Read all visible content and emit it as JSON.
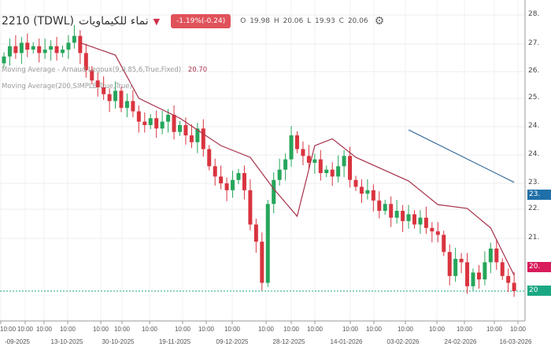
{
  "header": {
    "symbol": "2210 (TDWL)",
    "name": "نماء للكيماويات",
    "change_badge": "-1.19%(-0.24)",
    "open_label": "O",
    "open": "19.98",
    "high_label": "H",
    "high": "20.06",
    "low_label": "L",
    "low": "19.93",
    "close_label": "C",
    "close": "20.06",
    "gear_icon": "gear-icon",
    "caret_icon": "triangle-down-icon"
  },
  "legends": [
    {
      "text": "Moving Average - Arnaud Legoux(9,0.85,6,True,Fixed)",
      "value": "20.70"
    },
    {
      "text": "Moving Average(200,SIMPLE,True,True)",
      "value": ""
    }
  ],
  "chart_data": {
    "type": "candlestick",
    "ylim": [
      19.6,
      28.2
    ],
    "y_tick_labels": [
      "28.",
      "27.",
      "26.",
      "25.",
      "24.",
      "24.",
      "23.",
      "22.",
      "21."
    ],
    "price_tags": [
      {
        "label": "23.",
        "color": "#1f6fa8"
      },
      {
        "label": "20.",
        "color": "#d81b5a"
      },
      {
        "label": "20",
        "color": "#1aa882"
      }
    ],
    "x_time_labels": [
      "10:00",
      "10:00",
      "10:00",
      "10:00",
      "10:00",
      "10:00",
      "10:00",
      "10:00",
      "10:00",
      "10:00",
      "10:00",
      "10:00",
      "10:00",
      "10:00",
      "10:00",
      "10:00",
      "10:00",
      "10:00",
      "10:00",
      "10:00"
    ],
    "x_date_labels": [
      "-09-2025",
      "13-10-2025",
      "30-10-2025",
      "19-11-2025",
      "09-12-2025",
      "28-12-2025",
      "14-01-2026",
      "03-02-2026",
      "24-02-2026",
      "16-03-2026"
    ],
    "closes": [
      26.9,
      27.2,
      27.0,
      27.3,
      27.1,
      27.2,
      27.0,
      27.1,
      27.2,
      27.0,
      27.1,
      27.3,
      27.5,
      27.0,
      26.5,
      26.2,
      26.0,
      25.8,
      25.6,
      25.9,
      25.4,
      25.6,
      25.3,
      25.0,
      24.9,
      25.1,
      24.8,
      25.0,
      25.2,
      24.7,
      24.9,
      24.6,
      24.4,
      24.8,
      24.2,
      23.7,
      23.4,
      23.2,
      23.0,
      23.3,
      23.5,
      23.0,
      22.0,
      21.5,
      20.3,
      22.6,
      23.3,
      23.6,
      23.9,
      24.6,
      24.2,
      24.0,
      23.8,
      23.9,
      23.5,
      23.6,
      23.4,
      23.7,
      24.0,
      23.3,
      23.1,
      22.9,
      23.0,
      22.7,
      22.4,
      22.6,
      22.2,
      22.4,
      22.1,
      22.3,
      22.0,
      22.2,
      21.9,
      21.8,
      21.7,
      21.2,
      20.5,
      21.0,
      20.9,
      20.2,
      20.6,
      20.4,
      20.9,
      21.3,
      20.9,
      20.5,
      20.3,
      20.06
    ],
    "colors": {
      "up": "#26a65b",
      "down": "#d9343f",
      "alma": "#a8324a",
      "sma200": "#3b6e9e"
    },
    "alma": [
      [
        13,
        27.3
      ],
      [
        19,
        26.94
      ],
      [
        23,
        25.68
      ],
      [
        30,
        25.1
      ],
      [
        37,
        24.3
      ],
      [
        42,
        23.96
      ],
      [
        46,
        23.04
      ],
      [
        50,
        22.24
      ],
      [
        53,
        24.3
      ],
      [
        56,
        24.5
      ],
      [
        60,
        23.96
      ],
      [
        69,
        23.27
      ],
      [
        74,
        22.58
      ],
      [
        79,
        22.47
      ],
      [
        83,
        21.9
      ],
      [
        87,
        20.52
      ]
    ],
    "sma200": [
      [
        69,
        24.76
      ],
      [
        87,
        23.23
      ]
    ]
  }
}
